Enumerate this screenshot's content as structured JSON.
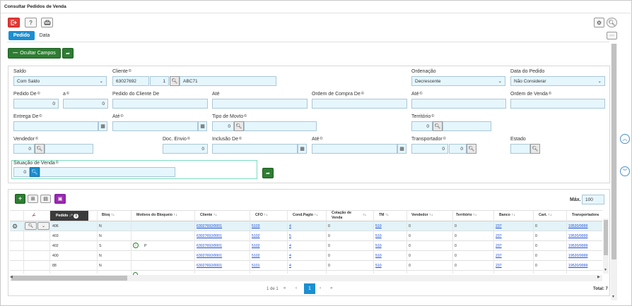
{
  "window": {
    "title": "Consultar Pedidos de Venda"
  },
  "toolbar": {
    "exit_icon": "exit-icon",
    "help_label": "?",
    "print_icon": "printer-icon"
  },
  "tabs": [
    {
      "label": "Pedido",
      "active": true
    },
    {
      "label": "Data",
      "active": false
    }
  ],
  "actions": {
    "hide_fields_label": "Ocultar Campos"
  },
  "filters": {
    "saldo": {
      "label": "Saldo",
      "value": "Com Saldo"
    },
    "cliente": {
      "label": "Cliente",
      "code": "63027692",
      "seq": "1",
      "name": "ABC71"
    },
    "ordenacao": {
      "label": "Ordenação",
      "value": "Decrescente"
    },
    "data_pedido": {
      "label": "Data do Pedido",
      "value": "Não Considerar"
    },
    "pedido_de": {
      "label": "Pedido De",
      "value": "0"
    },
    "pedido_ate": {
      "label": "a",
      "value": "0"
    },
    "pedido_cliente_de": {
      "label": "Pedido do Cliente De"
    },
    "pedido_cliente_ate": {
      "label": "Até"
    },
    "ordem_compra_de": {
      "label": "Ordem de Compra De"
    },
    "ordem_compra_ate": {
      "label": "Até"
    },
    "ordem_venda": {
      "label": "Ordem de Venda"
    },
    "entrega_de": {
      "label": "Entrega De"
    },
    "entrega_ate": {
      "label": "Até"
    },
    "tipo_movto": {
      "label": "Tipo de Movto",
      "value": "0"
    },
    "territorio": {
      "label": "Território",
      "value": "0"
    },
    "vendedor": {
      "label": "Vendedor",
      "value": "0"
    },
    "doc_envio": {
      "label": "Doc. Envio",
      "value": "0"
    },
    "inclusao_de": {
      "label": "Inclusão De"
    },
    "inclusao_ate": {
      "label": "Até"
    },
    "transportador": {
      "label": "Transportador",
      "value1": "0",
      "value2": "0"
    },
    "estado": {
      "label": "Estado"
    },
    "situacao_venda": {
      "label": "Situação de Venda",
      "value": "0"
    }
  },
  "grid": {
    "max_label": "Máx.",
    "max_value": "100",
    "columns": [
      "Pedido",
      "Bloq",
      "Motivos do Bloqueio",
      "Cliente",
      "CFO",
      "Cond.Pagto",
      "Cotação de Venda",
      "TM",
      "Vendedor",
      "Território",
      "Banco",
      "Cart.",
      "Transportadora"
    ],
    "sort_badge": "1",
    "rows": [
      {
        "pedido": "406",
        "bloq": "N",
        "motivo": "",
        "cliente": "63027692/0001",
        "cfo": "5103",
        "cond": "4",
        "cot": "0",
        "tm": "510",
        "vend": "0",
        "terr": "0",
        "banco": "237",
        "cart": "0",
        "transp": "19520/9999"
      },
      {
        "pedido": "403",
        "bloq": "N",
        "motivo": "",
        "cliente": "63027692/0001",
        "cfo": "5102",
        "cond": "5",
        "cot": "0",
        "tm": "510",
        "vend": "0",
        "terr": "0",
        "banco": "237",
        "cart": "0",
        "transp": "19520/9999"
      },
      {
        "pedido": "402",
        "bloq": "S",
        "motivo": "P",
        "cliente": "63027692/0001",
        "cfo": "5102",
        "cond": "4",
        "cot": "0",
        "tm": "510",
        "vend": "0",
        "terr": "0",
        "banco": "237",
        "cart": "0",
        "transp": "19520/9999"
      },
      {
        "pedido": "400",
        "bloq": "N",
        "motivo": "",
        "cliente": "63027692/0001",
        "cfo": "5102",
        "cond": "4",
        "cot": "0",
        "tm": "510",
        "vend": "0",
        "terr": "0",
        "banco": "237",
        "cart": "0",
        "transp": "19520/9999"
      },
      {
        "pedido": "88",
        "bloq": "N",
        "motivo": "",
        "cliente": "63027692/0001",
        "cfo": "5101",
        "cond": "4",
        "cot": "0",
        "tm": "510",
        "vend": "0",
        "terr": "0",
        "banco": "237",
        "cart": "0",
        "transp": "19520/9999"
      }
    ]
  },
  "pagination": {
    "info": "1 de 1",
    "page": "1",
    "total": "Total: 7"
  }
}
